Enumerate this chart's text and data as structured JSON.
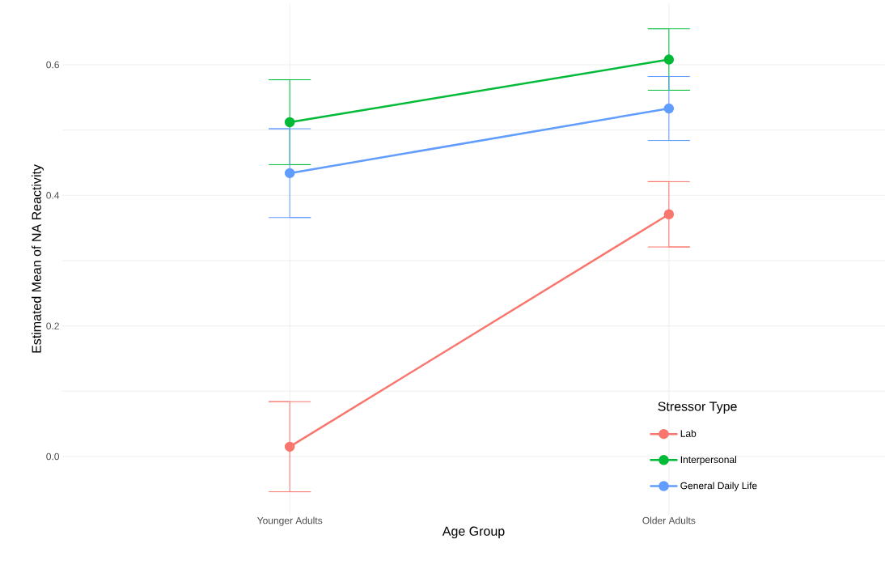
{
  "chart_data": {
    "type": "line",
    "xlabel": "Age Group",
    "ylabel": "Estimated Mean of NA Reactivity",
    "legend_title": "Stressor Type",
    "categories": [
      "Younger Adults",
      "Older Adults"
    ],
    "series": [
      {
        "name": "Lab",
        "color": "#f8766d",
        "values": [
          0.015,
          0.371
        ],
        "errors": [
          0.069,
          0.05
        ]
      },
      {
        "name": "Interpersonal",
        "color": "#00ba38",
        "values": [
          0.512,
          0.608
        ],
        "errors": [
          0.065,
          0.047
        ]
      },
      {
        "name": "General Daily Life",
        "color": "#619cff",
        "values": [
          0.434,
          0.533
        ],
        "errors": [
          0.068,
          0.049
        ]
      }
    ],
    "ylim": [
      -0.088,
      0.693
    ],
    "yticks": [
      "0.0",
      {
        "value": 0.1,
        "label": null
      },
      0.2,
      {
        "value": 0.3,
        "label": null
      },
      0.4,
      {
        "value": 0.5,
        "label": null
      },
      0.6
    ],
    "grid": true,
    "legend": "bottom right",
    "marker": "circle",
    "line_style": "solid"
  }
}
